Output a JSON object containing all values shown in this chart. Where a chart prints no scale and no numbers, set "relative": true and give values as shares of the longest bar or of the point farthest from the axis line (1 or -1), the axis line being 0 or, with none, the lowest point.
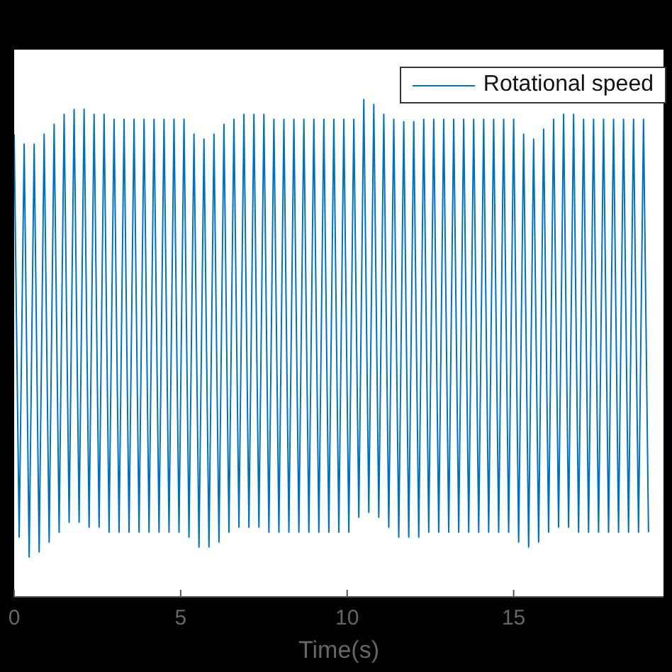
{
  "chart_data": {
    "type": "line",
    "xlabel": "Time(s)",
    "relative": true,
    "xlim": [
      0,
      19.5
    ],
    "xticks": [
      0,
      5,
      10,
      15
    ],
    "legend": "top right",
    "marker": "none",
    "line_style": "solid",
    "x": [
      0,
      0.15,
      0.3,
      0.45,
      0.6,
      0.75,
      0.9,
      1.05,
      1.2,
      1.35,
      1.5,
      1.65,
      1.8,
      1.95,
      2.1,
      2.25,
      2.4,
      2.55,
      2.7,
      2.85,
      3,
      3.15,
      3.3,
      3.45,
      3.6,
      3.75,
      3.9,
      4.05,
      4.2,
      4.35,
      4.5,
      4.65,
      4.8,
      4.95,
      5.1,
      5.25,
      5.4,
      5.55,
      5.7,
      5.85,
      6,
      6.15,
      6.3,
      6.45,
      6.6,
      6.75,
      6.9,
      7.05,
      7.2,
      7.35,
      7.5,
      7.65,
      7.8,
      7.95,
      8.1,
      8.25,
      8.4,
      8.55,
      8.7,
      8.85,
      9,
      9.15,
      9.3,
      9.45,
      9.6,
      9.75,
      9.9,
      10.05,
      10.2,
      10.35,
      10.5,
      10.65,
      10.8,
      10.95,
      11.1,
      11.25,
      11.4,
      11.55,
      11.7,
      11.85,
      12,
      12.15,
      12.3,
      12.45,
      12.6,
      12.75,
      12.9,
      13.05,
      13.2,
      13.35,
      13.5,
      13.65,
      13.8,
      13.95,
      14.1,
      14.25,
      14.4,
      14.55,
      14.7,
      14.85,
      15,
      15.15,
      15.3,
      15.45,
      15.6,
      15.75,
      15.9,
      16.05,
      16.2,
      16.35,
      16.5,
      16.65,
      16.8,
      16.95,
      17.1,
      17.25,
      17.4,
      17.55,
      17.7,
      17.85,
      18,
      18.15,
      18.3,
      18.45,
      18.6,
      18.75,
      18.9,
      19.05
    ],
    "series": [
      {
        "name": "Rotational speed",
        "color": "#0072bd",
        "values": [
          0.93,
          0.12,
          0.91,
          0.08,
          0.91,
          0.09,
          0.93,
          0.11,
          0.95,
          0.13,
          0.97,
          0.15,
          0.98,
          0.15,
          0.98,
          0.14,
          0.97,
          0.14,
          0.97,
          0.13,
          0.96,
          0.13,
          0.96,
          0.13,
          0.96,
          0.13,
          0.96,
          0.13,
          0.96,
          0.13,
          0.96,
          0.13,
          0.96,
          0.13,
          0.96,
          0.12,
          0.93,
          0.1,
          0.92,
          0.1,
          0.93,
          0.11,
          0.95,
          0.13,
          0.96,
          0.14,
          0.97,
          0.14,
          0.97,
          0.14,
          0.97,
          0.13,
          0.96,
          0.13,
          0.96,
          0.13,
          0.96,
          0.13,
          0.96,
          0.13,
          0.96,
          0.13,
          0.96,
          0.13,
          0.96,
          0.13,
          0.96,
          0.13,
          0.96,
          0.16,
          1,
          0.17,
          0.99,
          0.16,
          0.97,
          0.14,
          0.96,
          0.12,
          0.955,
          0.12,
          0.955,
          0.12,
          0.96,
          0.13,
          0.96,
          0.13,
          0.96,
          0.13,
          0.96,
          0.13,
          0.96,
          0.13,
          0.96,
          0.13,
          0.96,
          0.13,
          0.96,
          0.13,
          0.96,
          0.13,
          0.96,
          0.11,
          0.93,
          0.1,
          0.92,
          0.11,
          0.94,
          0.13,
          0.96,
          0.14,
          0.97,
          0.14,
          0.97,
          0.13,
          0.96,
          0.13,
          0.96,
          0.13,
          0.96,
          0.13,
          0.96,
          0.13,
          0.96,
          0.13,
          0.96,
          0.13,
          0.96,
          0.13
        ]
      }
    ]
  }
}
